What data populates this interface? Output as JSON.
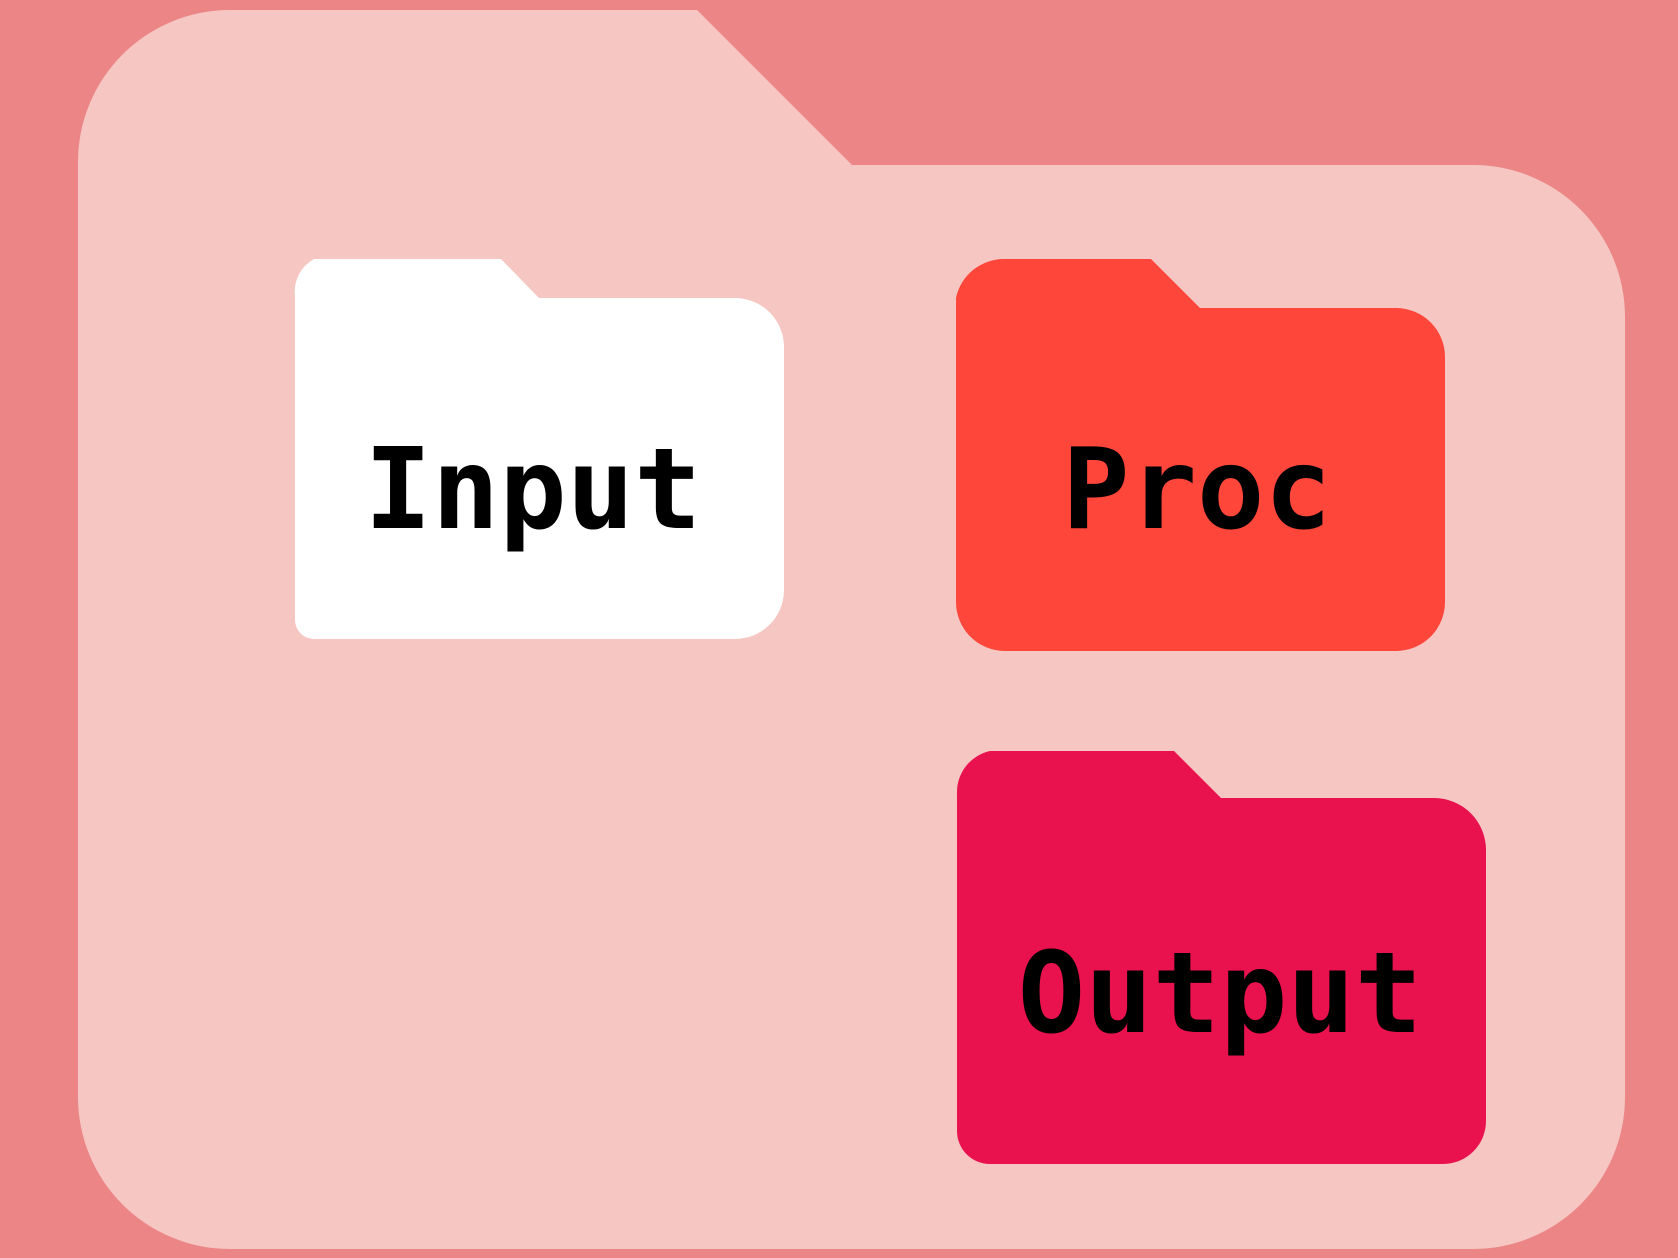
{
  "diagram": {
    "background_color": "#ec8686",
    "container": {
      "icon": "folder-icon",
      "color": "#f5c6c2"
    },
    "folders": [
      {
        "id": "input",
        "label": "Input",
        "icon": "folder-icon",
        "color": "#ffffff"
      },
      {
        "id": "proc",
        "label": "Proc",
        "icon": "folder-icon",
        "color": "#ff463a"
      },
      {
        "id": "output",
        "label": "Output",
        "icon": "folder-icon",
        "color": "#e9124e"
      }
    ]
  }
}
